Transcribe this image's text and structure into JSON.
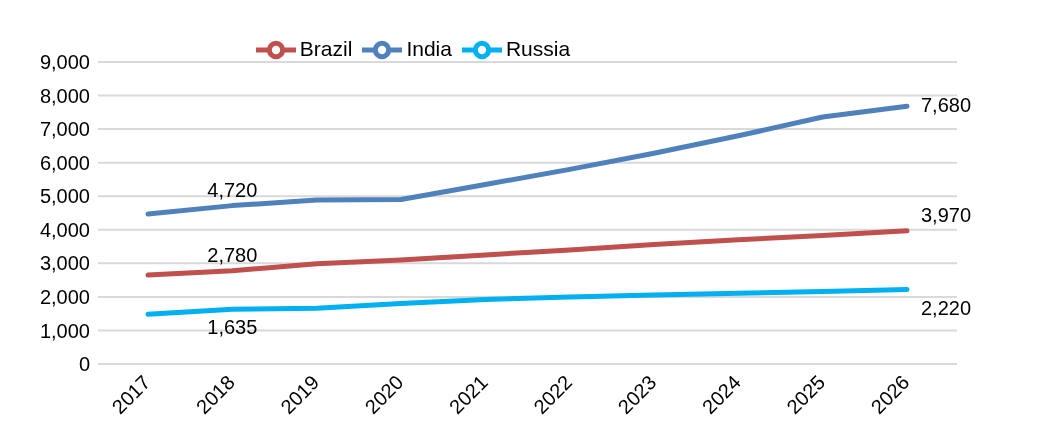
{
  "chart_data": {
    "type": "line",
    "categories": [
      "2017",
      "2018",
      "2019",
      "2020",
      "2021",
      "2022",
      "2023",
      "2024",
      "2025",
      "2026"
    ],
    "series": [
      {
        "name": "Russia",
        "color": "#00b0f0",
        "values": [
          1480,
          1635,
          1660,
          1800,
          1920,
          2000,
          2060,
          2110,
          2160,
          2220
        ],
        "value_labels": [
          null,
          "1,635",
          null,
          null,
          null,
          null,
          null,
          null,
          null,
          "2,220"
        ]
      },
      {
        "name": "India",
        "color": "#4f81bd",
        "values": [
          4470,
          4720,
          4890,
          4900,
          5350,
          5800,
          6280,
          6800,
          7360,
          7680
        ],
        "value_labels": [
          null,
          "4,720",
          null,
          null,
          null,
          null,
          null,
          null,
          null,
          "7,680"
        ]
      },
      {
        "name": "Brazil",
        "color": "#c0504d",
        "values": [
          2650,
          2780,
          2990,
          3100,
          3250,
          3400,
          3560,
          3700,
          3830,
          3970
        ],
        "value_labels": [
          null,
          "2,780",
          null,
          null,
          null,
          null,
          null,
          null,
          null,
          "3,970"
        ]
      }
    ],
    "ylim": [
      0,
      9000
    ],
    "yticks": [
      {
        "value": 0,
        "label": "0"
      },
      {
        "value": 1000,
        "label": "1,000"
      },
      {
        "value": 2000,
        "label": "2,000"
      },
      {
        "value": 3000,
        "label": "3,000"
      },
      {
        "value": 4000,
        "label": "4,000"
      },
      {
        "value": 5000,
        "label": "5,000"
      },
      {
        "value": 6000,
        "label": "6,000"
      },
      {
        "value": 7000,
        "label": "7,000"
      },
      {
        "value": 8000,
        "label": "8,000"
      },
      {
        "value": 9000,
        "label": "9,000"
      }
    ],
    "grid": "y",
    "legend": "top",
    "marker": "none",
    "line_style": "solid"
  }
}
